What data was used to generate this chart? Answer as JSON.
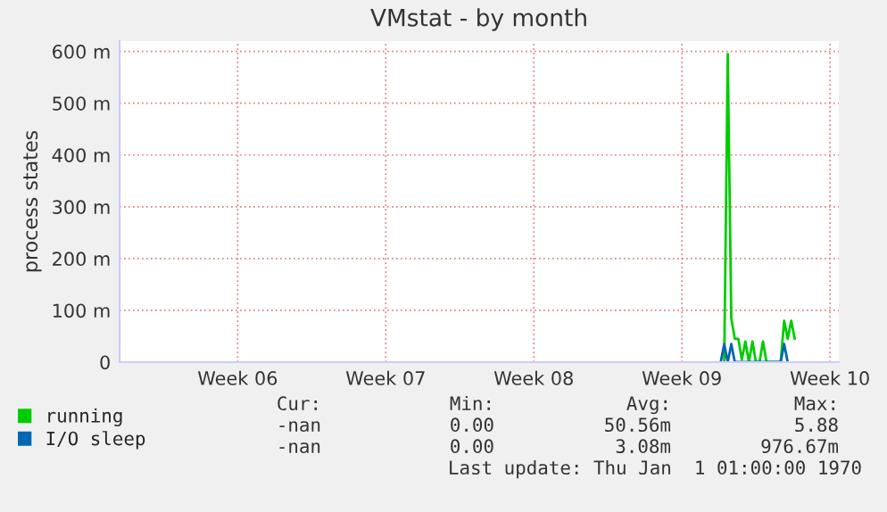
{
  "chart_data": {
    "type": "line",
    "title": "VMstat - by month",
    "ylabel": "process states",
    "categories": [
      null,
      null,
      null,
      null,
      null,
      null,
      null,
      null,
      null,
      null,
      null,
      null,
      null,
      null,
      null,
      null,
      null,
      null,
      null,
      null,
      null,
      null,
      null,
      null,
      null,
      null,
      null,
      null,
      null,
      null,
      null,
      null,
      null,
      "Week 06",
      null,
      null,
      null,
      null,
      null,
      null,
      null,
      null,
      null,
      null,
      null,
      null,
      null,
      null,
      null,
      null,
      null,
      null,
      null,
      null,
      null,
      null,
      null,
      null,
      null,
      null,
      null,
      null,
      null,
      null,
      null,
      null,
      null,
      null,
      null,
      null,
      null,
      null,
      null,
      null,
      null,
      "Week 07",
      null,
      null,
      null,
      null,
      null,
      null,
      null,
      null,
      null,
      null,
      null,
      null,
      null,
      null,
      null,
      null,
      null,
      null,
      null,
      null,
      null,
      null,
      null,
      null,
      null,
      null,
      null,
      null,
      null,
      null,
      null,
      null,
      null,
      null,
      null,
      null,
      null,
      null,
      null,
      null,
      null,
      "Week 08",
      null,
      null,
      null,
      null,
      null,
      null,
      null,
      null,
      null,
      null,
      null,
      null,
      null,
      null,
      null,
      null,
      null,
      null,
      null,
      null,
      null,
      null,
      null,
      null,
      null,
      null,
      null,
      null,
      null,
      null,
      null,
      null,
      null,
      null,
      null,
      null,
      null,
      null,
      null,
      null,
      null,
      "Week 09",
      null,
      null,
      null,
      null,
      null,
      null,
      null,
      null,
      null,
      null,
      null,
      null,
      null,
      null,
      null,
      null,
      null,
      null,
      null,
      null,
      null,
      null,
      null,
      null,
      null,
      null,
      null,
      null,
      null,
      null,
      null,
      null,
      null,
      null,
      null,
      null,
      null,
      null,
      null,
      null,
      null,
      "Week 10",
      null,
      null
    ],
    "ylim": [
      0,
      620
    ],
    "yticks": [
      0,
      {
        "value": 100,
        "label": "100 m"
      },
      {
        "value": 200,
        "label": "200 m"
      },
      {
        "value": 300,
        "label": "300 m"
      },
      {
        "value": 400,
        "label": "400 m"
      },
      {
        "value": 500,
        "label": "500 m"
      },
      {
        "value": 600,
        "label": "600 m"
      }
    ],
    "grid": true,
    "legend": "bottom left",
    "series": [
      {
        "name": "running",
        "color": "#00cc00",
        "values": [
          null,
          null,
          null,
          null,
          null,
          null,
          null,
          null,
          null,
          null,
          null,
          null,
          null,
          null,
          null,
          null,
          null,
          null,
          null,
          null,
          null,
          null,
          null,
          null,
          null,
          null,
          null,
          null,
          null,
          null,
          null,
          null,
          null,
          null,
          null,
          null,
          null,
          null,
          null,
          null,
          null,
          null,
          null,
          null,
          null,
          null,
          null,
          null,
          null,
          null,
          null,
          null,
          null,
          null,
          null,
          null,
          null,
          null,
          null,
          null,
          null,
          null,
          null,
          null,
          null,
          null,
          null,
          null,
          null,
          null,
          null,
          null,
          null,
          null,
          null,
          null,
          null,
          null,
          null,
          null,
          null,
          null,
          null,
          null,
          null,
          null,
          null,
          null,
          null,
          null,
          null,
          null,
          null,
          null,
          null,
          null,
          null,
          null,
          null,
          null,
          null,
          null,
          null,
          null,
          null,
          null,
          null,
          null,
          null,
          null,
          null,
          null,
          null,
          null,
          null,
          null,
          null,
          null,
          null,
          null,
          null,
          null,
          null,
          null,
          null,
          null,
          null,
          null,
          null,
          null,
          null,
          null,
          null,
          null,
          null,
          null,
          null,
          null,
          null,
          null,
          null,
          null,
          null,
          null,
          null,
          null,
          null,
          null,
          null,
          null,
          null,
          null,
          null,
          null,
          null,
          null,
          null,
          null,
          null,
          null,
          null,
          null,
          null,
          null,
          null,
          null,
          null,
          null,
          null,
          null,
          null,
          0,
          595,
          85,
          45,
          45,
          5,
          40,
          0,
          40,
          0,
          0,
          40,
          0,
          0,
          0,
          0,
          0,
          80,
          45,
          80,
          45,
          null,
          null,
          null,
          null,
          null,
          null,
          null,
          null,
          null,
          null,
          null,
          null
        ]
      },
      {
        "name": "I/O sleep",
        "color": "#0066b3",
        "values": [
          null,
          null,
          null,
          null,
          null,
          null,
          null,
          null,
          null,
          null,
          null,
          null,
          null,
          null,
          null,
          null,
          null,
          null,
          null,
          null,
          null,
          null,
          null,
          null,
          null,
          null,
          null,
          null,
          null,
          null,
          null,
          null,
          null,
          null,
          null,
          null,
          null,
          null,
          null,
          null,
          null,
          null,
          null,
          null,
          null,
          null,
          null,
          null,
          null,
          null,
          null,
          null,
          null,
          null,
          null,
          null,
          null,
          null,
          null,
          null,
          null,
          null,
          null,
          null,
          null,
          null,
          null,
          null,
          null,
          null,
          null,
          null,
          null,
          null,
          null,
          null,
          null,
          null,
          null,
          null,
          null,
          null,
          null,
          null,
          null,
          null,
          null,
          null,
          null,
          null,
          null,
          null,
          null,
          null,
          null,
          null,
          null,
          null,
          null,
          null,
          null,
          null,
          null,
          null,
          null,
          null,
          null,
          null,
          null,
          null,
          null,
          null,
          null,
          null,
          null,
          null,
          null,
          null,
          null,
          null,
          null,
          null,
          null,
          null,
          null,
          null,
          null,
          null,
          null,
          null,
          null,
          null,
          null,
          null,
          null,
          null,
          null,
          null,
          null,
          null,
          null,
          null,
          null,
          null,
          null,
          null,
          null,
          null,
          null,
          null,
          null,
          null,
          null,
          null,
          null,
          null,
          null,
          null,
          null,
          null,
          null,
          null,
          null,
          null,
          null,
          null,
          null,
          null,
          null,
          null,
          0,
          35,
          0,
          35,
          0,
          0,
          0,
          0,
          0,
          0,
          0,
          0,
          0,
          0,
          0,
          0,
          0,
          0,
          35,
          0,
          null,
          null,
          null,
          null,
          null,
          null,
          null,
          null,
          null,
          null,
          null,
          null,
          null,
          null
        ]
      }
    ],
    "annotations": [
      "Cur:",
      "Min:",
      "Avg:",
      "Max:",
      "-nan",
      "0.00",
      "50.56m",
      "5.88",
      "-nan",
      "0.00",
      "3.08m",
      "976.67m",
      "Last update: Thu Jan  1 01:00:00 1970"
    ]
  }
}
